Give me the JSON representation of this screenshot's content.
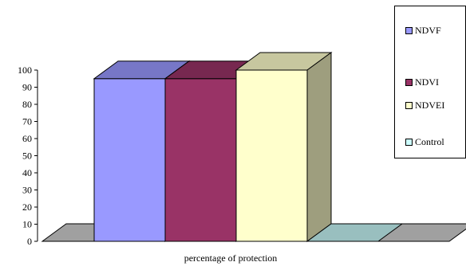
{
  "chart_data": {
    "type": "bar",
    "categories": [
      "percentage of protection"
    ],
    "series": [
      {
        "name": "NDVF",
        "values": [
          95
        ],
        "color": "#9999ff"
      },
      {
        "name": "NDVI",
        "values": [
          95
        ],
        "color": "#993366"
      },
      {
        "name": "NDVEI",
        "values": [
          100
        ],
        "color": "#ffffcc"
      },
      {
        "name": "Control",
        "values": [
          0
        ],
        "color": "#ccffff"
      }
    ],
    "title": "",
    "xlabel": "percentage of protection",
    "ylabel": "",
    "ylim": [
      0,
      100
    ],
    "yticks": [
      "0",
      "10",
      "20",
      "30",
      "40",
      "50",
      "60",
      "70",
      "80",
      "90",
      "100"
    ],
    "style": "3d",
    "floor_color": "#a0a0a0",
    "legend_position": "right"
  }
}
